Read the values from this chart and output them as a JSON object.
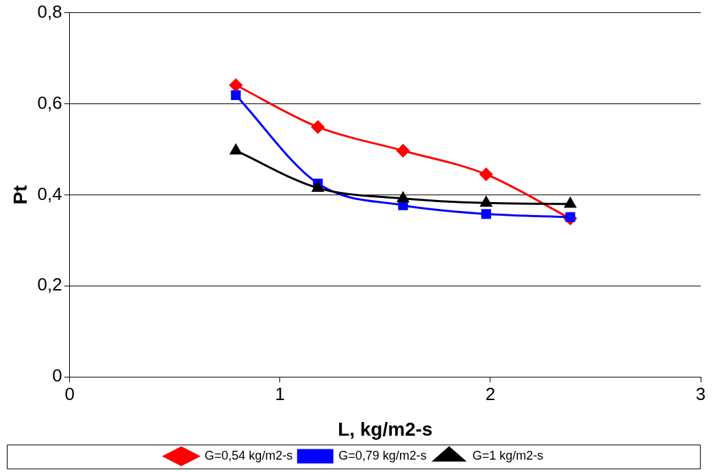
{
  "chart_data": {
    "type": "line",
    "xlabel": "L, kg/m2-s",
    "ylabel": "Pt",
    "x": [
      0.79,
      1.18,
      1.585,
      1.98,
      2.38
    ],
    "series": [
      {
        "name": "G=0,54 kg/m2-s",
        "color": "#ff0000",
        "marker": "diamond",
        "values": [
          0.641,
          0.549,
          0.497,
          0.445,
          0.348
        ]
      },
      {
        "name": "G=0,79 kg/m2-s",
        "color": "#0000ff",
        "marker": "square",
        "values": [
          0.619,
          0.425,
          0.377,
          0.358,
          0.351
        ]
      },
      {
        "name": "G=1 kg/m2-s",
        "color": "#000000",
        "marker": "triangle",
        "values": [
          0.497,
          0.415,
          0.392,
          0.382,
          0.38
        ]
      }
    ],
    "xlim": [
      0,
      3
    ],
    "xticks": [
      0,
      1,
      2,
      3
    ],
    "ylim": [
      0,
      0.8
    ],
    "yticks": [
      0,
      {
        "value": 0.2,
        "label": "0,2"
      },
      {
        "value": 0.4,
        "label": "0,4"
      },
      {
        "value": 0.6,
        "label": "0,6"
      },
      {
        "value": 0.8,
        "label": "0,8"
      }
    ],
    "grid": "y",
    "legend": "bottom",
    "line_style": "solid"
  }
}
